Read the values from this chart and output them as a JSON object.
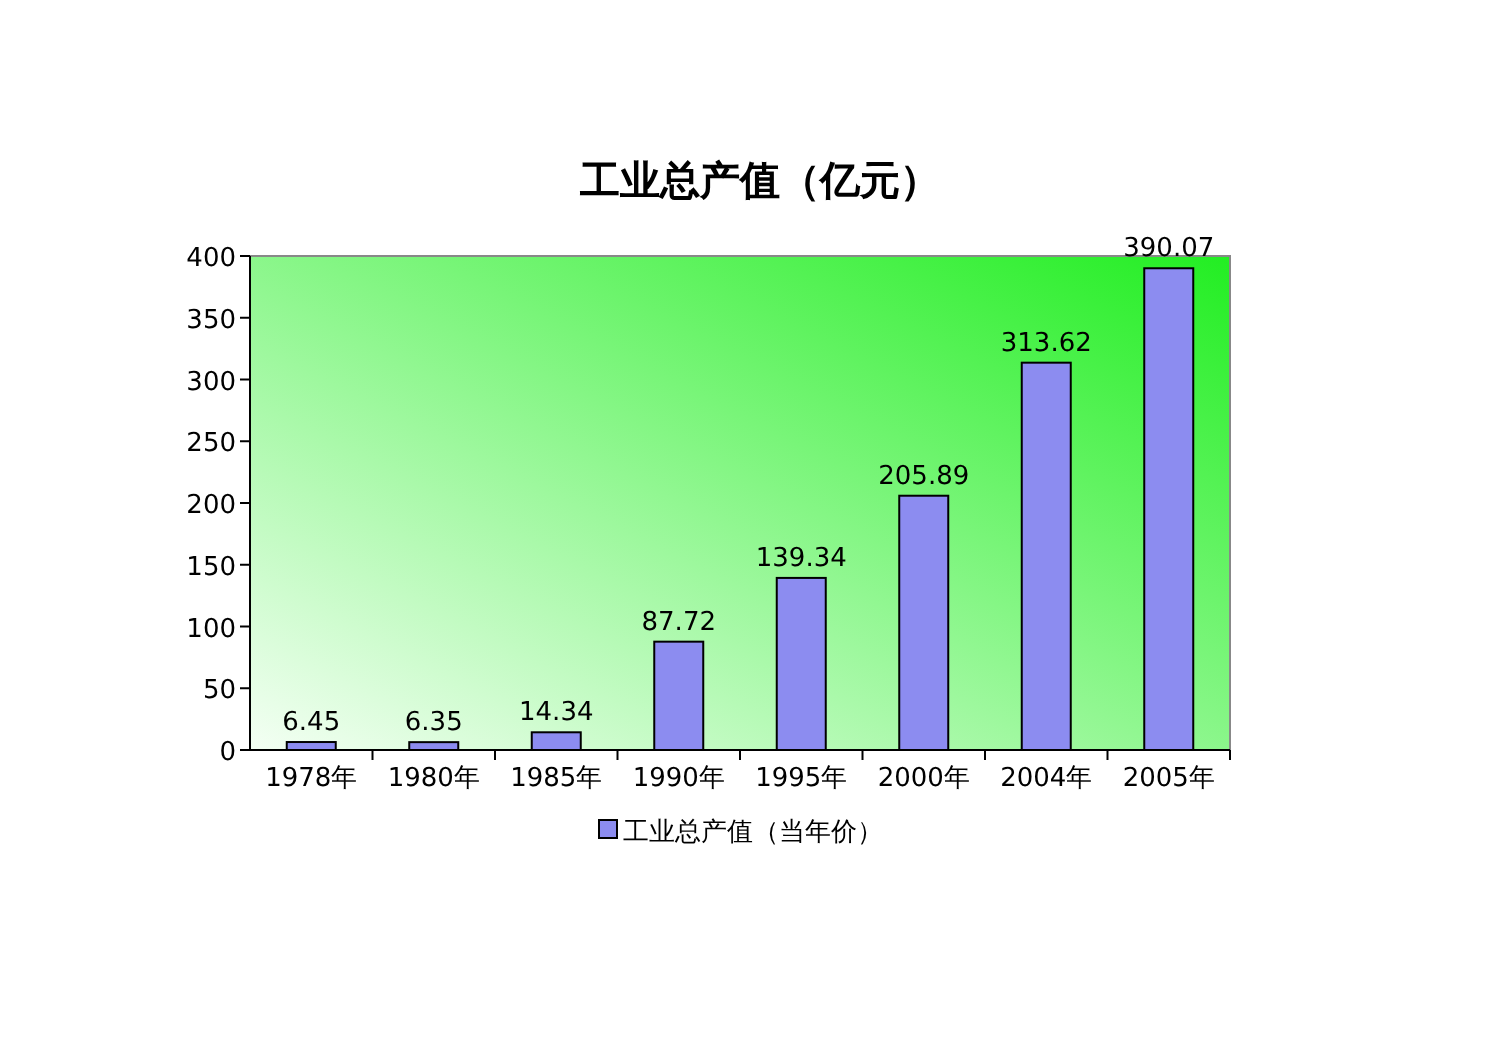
{
  "chart_data": {
    "type": "bar",
    "title": "工业总产值（亿元）",
    "categories": [
      "1978年",
      "1980年",
      "1985年",
      "1990年",
      "1995年",
      "2000年",
      "2004年",
      "2005年"
    ],
    "series": [
      {
        "name": "工业总产值（当年价）",
        "color": "#8c8cf0",
        "values": [
          6.45,
          6.35,
          14.34,
          87.72,
          139.34,
          205.89,
          313.62,
          390.07
        ]
      }
    ],
    "ylim": [
      0,
      400
    ],
    "yticks": [
      0,
      50,
      100,
      150,
      200,
      250,
      300,
      350,
      400
    ],
    "data_labels": true,
    "legend": "bottom",
    "grid": false
  }
}
